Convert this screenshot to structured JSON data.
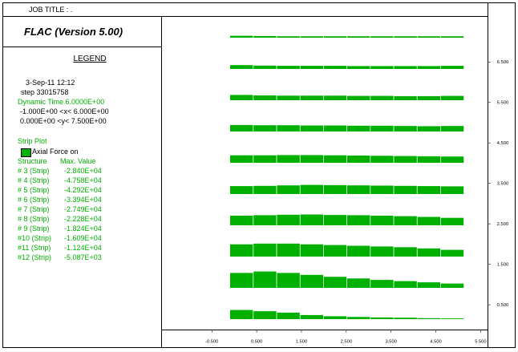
{
  "job_title": "JOB TITLE : .",
  "app_title": "FLAC (Version 5.00)",
  "legend": {
    "heading": "LEGEND",
    "date": "3-Sep-11 12:12",
    "step": "step 33015758",
    "dynamic_time": "Dynamic Time  6.0000E+00",
    "x_range": "-1.000E+00 <x< 6.000E+00",
    "y_range": "0.000E+00 <y< 7.500E+00",
    "strip_plot": "Strip Plot",
    "axial_force": "Axial Force on",
    "col_structure": "Structure",
    "col_max": "Max. Value",
    "rows": [
      {
        "structure": "# 3 (Strip)",
        "max": "-2.840E+04"
      },
      {
        "structure": "# 4 (Strip)",
        "max": "-4.758E+04"
      },
      {
        "structure": "# 5 (Strip)",
        "max": "-4.292E+04"
      },
      {
        "structure": "# 6 (Strip)",
        "max": "-3.394E+04"
      },
      {
        "structure": "# 7 (Strip)",
        "max": "-2.749E+04"
      },
      {
        "structure": "# 8 (Strip)",
        "max": "-2.228E+04"
      },
      {
        "structure": "# 9 (Strip)",
        "max": "-1.824E+04"
      },
      {
        "structure": "#10 (Strip)",
        "max": "-1.609E+04"
      },
      {
        "structure": "#11 (Strip)",
        "max": "-1.124E+04"
      },
      {
        "structure": "#12 (Strip)",
        "max": "-5.087E+03"
      }
    ]
  },
  "colors": {
    "strip": "#00b000"
  },
  "chart_data": {
    "type": "bar",
    "x_ticks": [
      "-0.500",
      "0.500",
      "1.500",
      "2.500",
      "3.500",
      "4.500",
      "5.500"
    ],
    "y_ticks": [
      "6.500",
      "5.500",
      "4.500",
      "3.500",
      "2.500",
      "1.500",
      "0.500"
    ],
    "xlim": [
      -1.0,
      6.0
    ],
    "ylim": [
      0.0,
      7.5
    ],
    "strips": [
      {
        "y": 7.0,
        "values": [
          0.8,
          0.7,
          0.6,
          0.6,
          0.6,
          0.6,
          0.6,
          0.6,
          0.6,
          0.6
        ]
      },
      {
        "y": 6.25,
        "values": [
          1.6,
          1.4,
          1.3,
          1.3,
          1.3,
          1.2,
          1.2,
          1.2,
          1.2,
          1.3
        ]
      },
      {
        "y": 5.5,
        "values": [
          2.2,
          2.0,
          1.9,
          1.9,
          1.9,
          1.8,
          1.8,
          1.7,
          1.7,
          1.8
        ]
      },
      {
        "y": 4.75,
        "values": [
          2.7,
          2.6,
          2.6,
          2.5,
          2.5,
          2.4,
          2.4,
          2.3,
          2.2,
          2.3
        ]
      },
      {
        "y": 4.0,
        "values": [
          3.1,
          3.1,
          3.2,
          3.2,
          3.1,
          3.0,
          2.9,
          2.8,
          2.7,
          2.6
        ]
      },
      {
        "y": 3.25,
        "values": [
          3.3,
          3.4,
          3.6,
          3.8,
          3.7,
          3.6,
          3.5,
          3.4,
          3.3,
          3.2
        ]
      },
      {
        "y": 2.5,
        "values": [
          4.0,
          4.2,
          4.4,
          4.5,
          4.3,
          4.2,
          4.0,
          3.8,
          3.5,
          3.1
        ]
      },
      {
        "y": 1.75,
        "values": [
          5.1,
          5.4,
          5.4,
          5.1,
          4.8,
          4.5,
          4.2,
          3.9,
          3.4,
          2.8
        ]
      },
      {
        "y": 1.0,
        "values": [
          6.2,
          6.8,
          6.2,
          5.4,
          4.6,
          3.9,
          3.3,
          2.8,
          2.3,
          1.8
        ]
      },
      {
        "y": 0.25,
        "values": [
          3.8,
          3.3,
          2.7,
          1.7,
          1.2,
          0.9,
          0.7,
          0.6,
          0.4,
          0.3
        ]
      }
    ]
  }
}
